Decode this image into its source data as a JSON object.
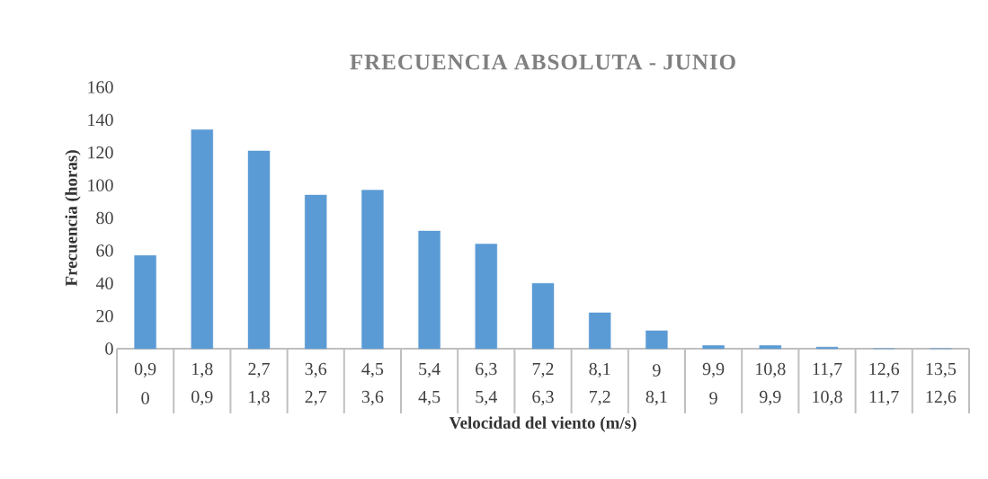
{
  "chart_data": {
    "type": "bar",
    "title": "FRECUENCIA ABSOLUTA - JUNIO",
    "xlabel": "Velocidad del viento (m/s)",
    "ylabel": "Frecuencia (horas)",
    "categories": [
      "0,9",
      "1,8",
      "2,7",
      "3,6",
      "4,5",
      "5,4",
      "6,3",
      "7,2",
      "8,1",
      "9",
      "9,9",
      "10,8",
      "11,7",
      "12,6",
      "13,5"
    ],
    "annotations": [
      "0",
      "0,9",
      "1,8",
      "2,7",
      "3,6",
      "4,5",
      "5,4",
      "6,3",
      "7,2",
      "8,1",
      "9",
      "9,9",
      "10,8",
      "11,7",
      "12,6"
    ],
    "values": [
      57,
      134,
      121,
      94,
      97,
      72,
      64,
      40,
      22,
      11,
      2,
      2,
      1,
      0,
      0
    ],
    "color": "#5b9bd5",
    "ylim": [
      0,
      160
    ],
    "yticks": [
      0,
      20,
      40,
      60,
      80,
      100,
      120,
      140,
      160
    ]
  }
}
